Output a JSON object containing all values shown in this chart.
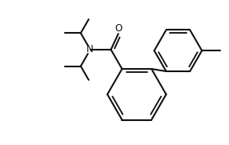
{
  "bg_color": "#ffffff",
  "line_color": "#111111",
  "line_width": 1.5,
  "fig_width": 2.86,
  "fig_height": 1.81,
  "dpi": 100
}
